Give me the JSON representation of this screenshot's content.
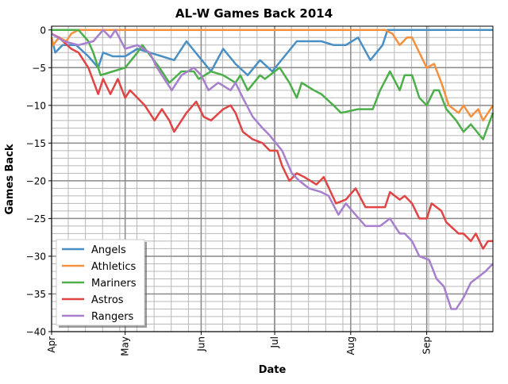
{
  "chart_data": {
    "type": "line",
    "title": "AL-W Games Back 2014",
    "xlabel": "Date",
    "ylabel": "Games Back",
    "xlim_days_since_apr1": [
      0,
      180
    ],
    "ylim": [
      -40,
      0.5
    ],
    "grid": true,
    "legend_position": "lower-left",
    "x_ticks": [
      {
        "day": 0,
        "label": "Apr"
      },
      {
        "day": 30,
        "label": "May"
      },
      {
        "day": 61,
        "label": "Jun"
      },
      {
        "day": 91,
        "label": "Jul"
      },
      {
        "day": 122,
        "label": "Aug"
      },
      {
        "day": 153,
        "label": "Sep"
      }
    ],
    "y_ticks": [
      {
        "value": 0,
        "label": "0"
      },
      {
        "value": -5,
        "label": "−5"
      },
      {
        "value": -10,
        "label": "−10"
      },
      {
        "value": -15,
        "label": "−15"
      },
      {
        "value": -20,
        "label": "−20"
      },
      {
        "value": -25,
        "label": "−25"
      },
      {
        "value": -30,
        "label": "−30"
      },
      {
        "value": -35,
        "label": "−35"
      },
      {
        "value": -40,
        "label": "−40"
      }
    ],
    "series": [
      {
        "name": "Angels",
        "color": "#4a8fc4",
        "points": [
          [
            0,
            -1
          ],
          [
            1.5,
            -3
          ],
          [
            4.5,
            -2
          ],
          [
            10,
            -2
          ],
          [
            15,
            -3.5
          ],
          [
            19,
            -5
          ],
          [
            21,
            -3
          ],
          [
            25,
            -3.5
          ],
          [
            30,
            -3.5
          ],
          [
            35,
            -2.5
          ],
          [
            40,
            -3
          ],
          [
            45,
            -3.5
          ],
          [
            50,
            -4
          ],
          [
            55,
            -1.5
          ],
          [
            60,
            -3.5
          ],
          [
            65,
            -5.5
          ],
          [
            70,
            -2.5
          ],
          [
            75,
            -4.5
          ],
          [
            80,
            -6
          ],
          [
            85,
            -4
          ],
          [
            90,
            -5.5
          ],
          [
            95,
            -3.5
          ],
          [
            100,
            -1.5
          ],
          [
            105,
            -1.5
          ],
          [
            110,
            -1.5
          ],
          [
            115,
            -2
          ],
          [
            120,
            -2
          ],
          [
            125,
            -1
          ],
          [
            130,
            -4
          ],
          [
            135,
            -2
          ],
          [
            137,
            0
          ],
          [
            180,
            0
          ]
        ]
      },
      {
        "name": "Athletics",
        "color": "#f5913e",
        "points": [
          [
            0,
            -1
          ],
          [
            0.6,
            -2
          ],
          [
            3,
            -1
          ],
          [
            6,
            -1.5
          ],
          [
            8,
            -0.5
          ],
          [
            11,
            0
          ],
          [
            136,
            0
          ],
          [
            139,
            -0.5
          ],
          [
            142,
            -2
          ],
          [
            145,
            -1
          ],
          [
            147,
            -1
          ],
          [
            150,
            -3
          ],
          [
            153,
            -5
          ],
          [
            156,
            -4.5
          ],
          [
            159,
            -7
          ],
          [
            162,
            -10
          ],
          [
            166,
            -11
          ],
          [
            168,
            -10
          ],
          [
            171,
            -11.5
          ],
          [
            174,
            -10.5
          ],
          [
            176,
            -12
          ],
          [
            180,
            -10
          ]
        ]
      },
      {
        "name": "Mariners",
        "color": "#4daf4a",
        "points": [
          [
            0,
            0
          ],
          [
            11,
            0
          ],
          [
            15,
            -1.5
          ],
          [
            17,
            -3
          ],
          [
            20,
            -6
          ],
          [
            25,
            -5.5
          ],
          [
            30,
            -5
          ],
          [
            35,
            -3
          ],
          [
            37,
            -2
          ],
          [
            44,
            -5
          ],
          [
            48,
            -7
          ],
          [
            53,
            -5.5
          ],
          [
            58,
            -5.5
          ],
          [
            60,
            -6.5
          ],
          [
            65,
            -5.5
          ],
          [
            70,
            -6
          ],
          [
            75,
            -7
          ],
          [
            77,
            -6
          ],
          [
            80,
            -8
          ],
          [
            85,
            -6
          ],
          [
            87,
            -6.5
          ],
          [
            93,
            -5
          ],
          [
            97,
            -7
          ],
          [
            100,
            -9
          ],
          [
            102,
            -7
          ],
          [
            107,
            -8
          ],
          [
            110,
            -8.5
          ],
          [
            115,
            -10
          ],
          [
            118,
            -11
          ],
          [
            125,
            -10.5
          ],
          [
            131,
            -10.5
          ],
          [
            134,
            -8
          ],
          [
            138,
            -5.5
          ],
          [
            142,
            -8
          ],
          [
            144,
            -6
          ],
          [
            147,
            -6
          ],
          [
            150,
            -9
          ],
          [
            153,
            -10
          ],
          [
            156,
            -8
          ],
          [
            158,
            -8
          ],
          [
            161,
            -10.5
          ],
          [
            165,
            -12
          ],
          [
            168,
            -13.5
          ],
          [
            171,
            -12.5
          ],
          [
            176,
            -14.5
          ],
          [
            180,
            -11
          ]
        ]
      },
      {
        "name": "Astros",
        "color": "#e04444",
        "points": [
          [
            0,
            -0.5
          ],
          [
            3,
            -1
          ],
          [
            8,
            -2.5
          ],
          [
            11,
            -3
          ],
          [
            15,
            -5
          ],
          [
            19,
            -8.5
          ],
          [
            21,
            -6.5
          ],
          [
            24,
            -8.5
          ],
          [
            27,
            -6.5
          ],
          [
            30,
            -9
          ],
          [
            32,
            -8
          ],
          [
            35,
            -9
          ],
          [
            38,
            -10
          ],
          [
            42,
            -12
          ],
          [
            45,
            -10.5
          ],
          [
            48,
            -12
          ],
          [
            50,
            -13.5
          ],
          [
            55,
            -11
          ],
          [
            59,
            -9.5
          ],
          [
            62,
            -11.5
          ],
          [
            65,
            -12
          ],
          [
            70,
            -10.5
          ],
          [
            73,
            -10
          ],
          [
            75,
            -11
          ],
          [
            78,
            -13.5
          ],
          [
            82,
            -14.5
          ],
          [
            86,
            -15
          ],
          [
            89,
            -16
          ],
          [
            92,
            -16
          ],
          [
            94,
            -18
          ],
          [
            97,
            -20
          ],
          [
            100,
            -19
          ],
          [
            103,
            -19.5
          ],
          [
            108,
            -20.5
          ],
          [
            111,
            -19.5
          ],
          [
            116,
            -23
          ],
          [
            120,
            -22.5
          ],
          [
            124,
            -21
          ],
          [
            128,
            -23.5
          ],
          [
            136,
            -23.5
          ],
          [
            138,
            -21.5
          ],
          [
            142,
            -22.5
          ],
          [
            144,
            -22
          ],
          [
            147,
            -23
          ],
          [
            150,
            -25
          ],
          [
            153,
            -25
          ],
          [
            155,
            -23
          ],
          [
            159,
            -24
          ],
          [
            161,
            -25.5
          ],
          [
            166,
            -27
          ],
          [
            168,
            -27
          ],
          [
            171,
            -28
          ],
          [
            173,
            -27
          ],
          [
            176,
            -29
          ],
          [
            178,
            -28
          ],
          [
            180,
            -28
          ]
        ]
      },
      {
        "name": "Rangers",
        "color": "#a77fcc",
        "points": [
          [
            0,
            -0.5
          ],
          [
            5,
            -1.5
          ],
          [
            11,
            -2
          ],
          [
            17,
            -1.5
          ],
          [
            21,
            0
          ],
          [
            24,
            -1
          ],
          [
            26,
            0
          ],
          [
            30,
            -2.5
          ],
          [
            35,
            -2
          ],
          [
            40,
            -3
          ],
          [
            43,
            -5
          ],
          [
            47,
            -7
          ],
          [
            49,
            -8
          ],
          [
            53,
            -6
          ],
          [
            58,
            -5
          ],
          [
            61,
            -6
          ],
          [
            64,
            -8
          ],
          [
            68,
            -7
          ],
          [
            73,
            -8
          ],
          [
            75,
            -7
          ],
          [
            78,
            -9
          ],
          [
            82,
            -11.5
          ],
          [
            86,
            -13
          ],
          [
            89,
            -14
          ],
          [
            94,
            -16
          ],
          [
            98,
            -19
          ],
          [
            101,
            -20
          ],
          [
            105,
            -21
          ],
          [
            110,
            -21.5
          ],
          [
            113,
            -22
          ],
          [
            117,
            -24.5
          ],
          [
            120,
            -23
          ],
          [
            124,
            -24.5
          ],
          [
            128,
            -26
          ],
          [
            134,
            -26
          ],
          [
            138,
            -25
          ],
          [
            142,
            -27
          ],
          [
            144,
            -27
          ],
          [
            147,
            -28
          ],
          [
            150,
            -30
          ],
          [
            154,
            -30.5
          ],
          [
            157,
            -33
          ],
          [
            160,
            -34
          ],
          [
            163,
            -37
          ],
          [
            165,
            -37
          ],
          [
            168,
            -35.5
          ],
          [
            171,
            -33.5
          ],
          [
            175,
            -32.5
          ],
          [
            177,
            -32
          ],
          [
            180,
            -31
          ]
        ]
      }
    ]
  }
}
